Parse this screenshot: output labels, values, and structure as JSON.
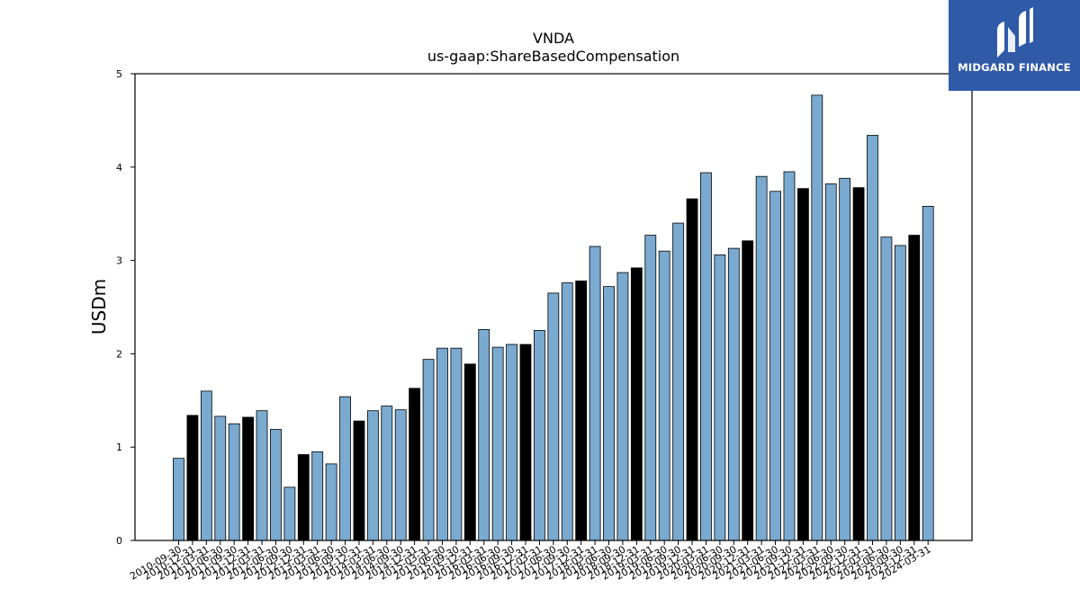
{
  "chart_data": {
    "type": "bar",
    "title": "VNDA",
    "subtitle": "us-gaap:ShareBasedCompensation",
    "xlabel": "",
    "ylabel": "USDm",
    "ylim": [
      0,
      5
    ],
    "yticks": [
      "0",
      "1",
      "2",
      "3",
      "4",
      "5"
    ],
    "grid": false,
    "colors": {
      "quarter": "#7aaad0",
      "annual": "#000000",
      "edge": "#000000"
    },
    "categories": [
      "2010-09-30",
      "2010-12-31",
      "2011-03-31",
      "2011-06-30",
      "2011-09-30",
      "2011-12-31",
      "2012-03-31",
      "2012-06-30",
      "2012-09-30",
      "2012-12-31",
      "2013-03-31",
      "2013-06-30",
      "2013-09-30",
      "2013-12-31",
      "2014-03-31",
      "2014-06-30",
      "2014-09-30",
      "2014-12-31",
      "2015-03-31",
      "2015-06-30",
      "2015-09-30",
      "2015-12-31",
      "2016-03-31",
      "2016-06-30",
      "2016-09-30",
      "2016-12-31",
      "2017-03-31",
      "2017-06-30",
      "2017-09-30",
      "2017-12-31",
      "2018-03-31",
      "2018-06-30",
      "2018-09-30",
      "2018-12-31",
      "2019-03-31",
      "2019-06-30",
      "2019-09-30",
      "2019-12-31",
      "2020-03-31",
      "2020-06-30",
      "2020-09-30",
      "2020-12-31",
      "2021-03-31",
      "2021-06-30",
      "2021-09-30",
      "2021-12-31",
      "2022-03-31",
      "2022-06-30",
      "2022-09-30",
      "2022-12-31",
      "2023-03-31",
      "2023-06-30",
      "2023-09-30",
      "2023-12-31",
      "2024-03-31"
    ],
    "values": [
      0.88,
      1.34,
      1.6,
      1.33,
      1.25,
      1.32,
      1.39,
      1.19,
      0.57,
      0.92,
      0.95,
      0.82,
      1.54,
      1.28,
      1.39,
      1.44,
      1.4,
      1.63,
      1.94,
      2.06,
      2.06,
      1.89,
      2.26,
      2.07,
      2.1,
      2.1,
      2.25,
      2.65,
      2.76,
      2.78,
      3.15,
      2.72,
      2.87,
      2.92,
      3.27,
      3.1,
      3.4,
      3.66,
      3.94,
      3.06,
      3.13,
      3.21,
      3.9,
      3.74,
      3.95,
      3.77,
      4.77,
      3.82,
      3.88,
      3.78,
      4.34,
      3.25,
      3.16,
      3.27,
      3.58
    ],
    "annual_flags": [
      0,
      1,
      0,
      0,
      0,
      1,
      0,
      0,
      0,
      1,
      0,
      0,
      0,
      1,
      0,
      0,
      0,
      1,
      0,
      0,
      0,
      1,
      0,
      0,
      0,
      1,
      0,
      0,
      0,
      1,
      0,
      0,
      0,
      1,
      0,
      0,
      0,
      1,
      0,
      0,
      0,
      1,
      0,
      0,
      0,
      1,
      0,
      0,
      0,
      1,
      0,
      0,
      0,
      1,
      0
    ]
  },
  "logo": {
    "text": "MIDGARD FINANCE"
  }
}
